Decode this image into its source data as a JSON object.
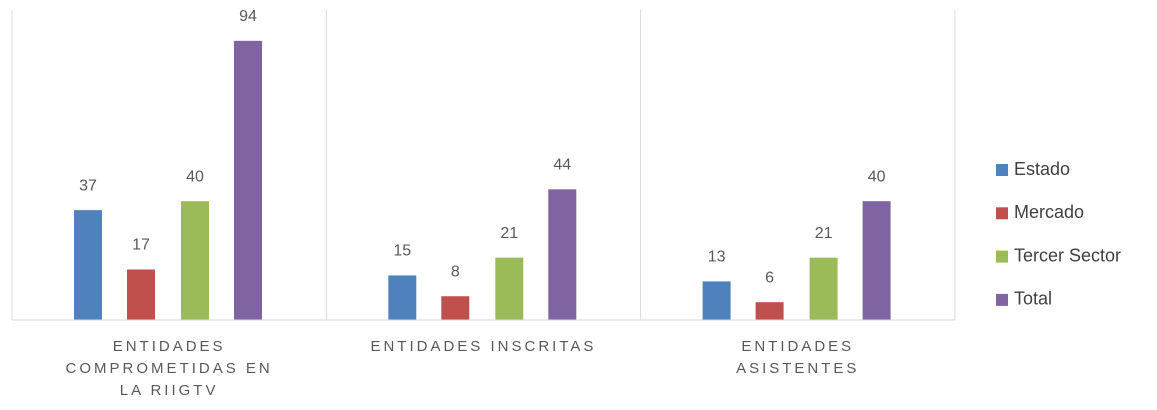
{
  "chart_data": {
    "type": "bar",
    "categories": [
      "ENTIDADES COMPROMETIDAS EN LA RIIGTV",
      "ENTIDADES INSCRITAS",
      "ENTIDADES ASISTENTES"
    ],
    "series": [
      {
        "name": "Estado",
        "color": "#4f81bd",
        "values": [
          37,
          15,
          13
        ]
      },
      {
        "name": "Mercado",
        "color": "#c0504d",
        "values": [
          17,
          8,
          6
        ]
      },
      {
        "name": "Tercer Sector",
        "color": "#9bbb59",
        "values": [
          40,
          21,
          21
        ]
      },
      {
        "name": "Total",
        "color": "#8064a2",
        "values": [
          94,
          44,
          40
        ]
      }
    ],
    "legend": "right"
  }
}
